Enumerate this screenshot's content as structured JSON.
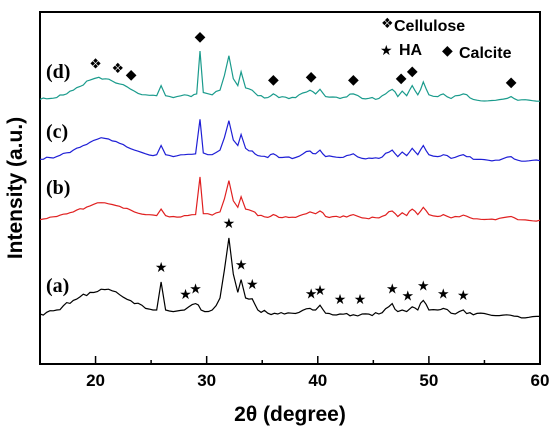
{
  "chart_data": {
    "type": "line",
    "xlabel": "2θ (degree)",
    "ylabel": "Intensity (a.u.)",
    "xlim": [
      15,
      60
    ],
    "xticks": [
      "20",
      "30",
      "40",
      "50",
      "60"
    ],
    "grid": false,
    "legend_position": "top-right",
    "legend": {
      "cellulose": {
        "symbol": "❖",
        "label": "Cellulose"
      },
      "ha": {
        "symbol": "★",
        "label": "HA"
      },
      "calcite": {
        "symbol": "◆",
        "label": "Calcite"
      }
    },
    "series": [
      {
        "name": "(d)",
        "color": "#1a9b8c",
        "points": [
          [
            15,
            0.1
          ],
          [
            16.5,
            0.14
          ],
          [
            18,
            0.3
          ],
          [
            19.5,
            0.52
          ],
          [
            20.3,
            0.58
          ],
          [
            21.5,
            0.5
          ],
          [
            22.5,
            0.42
          ],
          [
            23.5,
            0.28
          ],
          [
            24.5,
            0.2
          ],
          [
            25.5,
            0.18
          ],
          [
            25.9,
            0.4
          ],
          [
            26.3,
            0.18
          ],
          [
            27,
            0.14
          ],
          [
            28,
            0.2
          ],
          [
            28.6,
            0.16
          ],
          [
            29.1,
            0.22
          ],
          [
            29.4,
            1.15
          ],
          [
            29.7,
            0.25
          ],
          [
            30.5,
            0.2
          ],
          [
            31.2,
            0.3
          ],
          [
            31.6,
            0.62
          ],
          [
            32.0,
            1.05
          ],
          [
            32.4,
            0.55
          ],
          [
            32.8,
            0.4
          ],
          [
            33.1,
            0.7
          ],
          [
            33.5,
            0.35
          ],
          [
            34.1,
            0.3
          ],
          [
            34.6,
            0.18
          ],
          [
            35.5,
            0.14
          ],
          [
            36.0,
            0.22
          ],
          [
            36.5,
            0.14
          ],
          [
            38,
            0.14
          ],
          [
            39.3,
            0.3
          ],
          [
            39.8,
            0.22
          ],
          [
            40.2,
            0.32
          ],
          [
            40.7,
            0.16
          ],
          [
            42,
            0.12
          ],
          [
            43.2,
            0.22
          ],
          [
            44,
            0.12
          ],
          [
            45.5,
            0.12
          ],
          [
            46.7,
            0.32
          ],
          [
            47.2,
            0.16
          ],
          [
            47.6,
            0.28
          ],
          [
            48.0,
            0.18
          ],
          [
            48.5,
            0.4
          ],
          [
            49.0,
            0.2
          ],
          [
            49.5,
            0.48
          ],
          [
            50.0,
            0.2
          ],
          [
            50.8,
            0.16
          ],
          [
            51.3,
            0.22
          ],
          [
            52,
            0.12
          ],
          [
            53.1,
            0.22
          ],
          [
            54,
            0.1
          ],
          [
            56,
            0.08
          ],
          [
            57.4,
            0.16
          ],
          [
            58,
            0.08
          ],
          [
            60,
            0.06
          ]
        ]
      },
      {
        "name": "(c)",
        "color": "#1f1fd6",
        "points": [
          [
            15,
            0.08
          ],
          [
            16.5,
            0.14
          ],
          [
            18,
            0.28
          ],
          [
            19.5,
            0.45
          ],
          [
            20.5,
            0.55
          ],
          [
            21.5,
            0.48
          ],
          [
            22.5,
            0.4
          ],
          [
            23.5,
            0.28
          ],
          [
            24.5,
            0.2
          ],
          [
            25.5,
            0.18
          ],
          [
            25.9,
            0.38
          ],
          [
            26.3,
            0.18
          ],
          [
            27,
            0.14
          ],
          [
            28,
            0.18
          ],
          [
            29.0,
            0.2
          ],
          [
            29.4,
            0.95
          ],
          [
            29.7,
            0.22
          ],
          [
            30.5,
            0.18
          ],
          [
            31.2,
            0.28
          ],
          [
            31.6,
            0.55
          ],
          [
            32.0,
            0.92
          ],
          [
            32.4,
            0.5
          ],
          [
            32.8,
            0.38
          ],
          [
            33.1,
            0.62
          ],
          [
            33.5,
            0.32
          ],
          [
            34.1,
            0.26
          ],
          [
            34.6,
            0.16
          ],
          [
            35.5,
            0.12
          ],
          [
            36.0,
            0.2
          ],
          [
            36.5,
            0.12
          ],
          [
            38,
            0.12
          ],
          [
            39.3,
            0.26
          ],
          [
            39.8,
            0.2
          ],
          [
            40.2,
            0.28
          ],
          [
            40.7,
            0.14
          ],
          [
            42,
            0.12
          ],
          [
            43.2,
            0.2
          ],
          [
            44,
            0.1
          ],
          [
            45.5,
            0.1
          ],
          [
            46.7,
            0.28
          ],
          [
            47.2,
            0.14
          ],
          [
            47.6,
            0.24
          ],
          [
            48.0,
            0.16
          ],
          [
            48.5,
            0.32
          ],
          [
            49.0,
            0.18
          ],
          [
            49.5,
            0.38
          ],
          [
            50.0,
            0.18
          ],
          [
            50.8,
            0.14
          ],
          [
            51.3,
            0.18
          ],
          [
            52,
            0.1
          ],
          [
            53.1,
            0.18
          ],
          [
            54,
            0.08
          ],
          [
            56,
            0.06
          ],
          [
            57.4,
            0.14
          ],
          [
            58,
            0.06
          ],
          [
            60,
            0.05
          ]
        ]
      },
      {
        "name": "(b)",
        "color": "#e02020",
        "points": [
          [
            15,
            0.05
          ],
          [
            16.5,
            0.12
          ],
          [
            18,
            0.22
          ],
          [
            19.5,
            0.35
          ],
          [
            20.5,
            0.42
          ],
          [
            21.5,
            0.38
          ],
          [
            22.5,
            0.3
          ],
          [
            23.5,
            0.22
          ],
          [
            24.5,
            0.16
          ],
          [
            25.5,
            0.14
          ],
          [
            25.9,
            0.28
          ],
          [
            26.3,
            0.14
          ],
          [
            27,
            0.12
          ],
          [
            28,
            0.14
          ],
          [
            29.0,
            0.16
          ],
          [
            29.4,
            0.98
          ],
          [
            29.7,
            0.18
          ],
          [
            30.5,
            0.15
          ],
          [
            31.2,
            0.22
          ],
          [
            31.6,
            0.5
          ],
          [
            32.0,
            0.9
          ],
          [
            32.4,
            0.46
          ],
          [
            32.8,
            0.32
          ],
          [
            33.1,
            0.55
          ],
          [
            33.5,
            0.28
          ],
          [
            34.1,
            0.24
          ],
          [
            34.6,
            0.14
          ],
          [
            35.5,
            0.1
          ],
          [
            36.0,
            0.16
          ],
          [
            36.5,
            0.1
          ],
          [
            38,
            0.1
          ],
          [
            39.3,
            0.22
          ],
          [
            39.8,
            0.18
          ],
          [
            40.2,
            0.24
          ],
          [
            40.7,
            0.12
          ],
          [
            42,
            0.1
          ],
          [
            43.2,
            0.16
          ],
          [
            44,
            0.09
          ],
          [
            45.5,
            0.09
          ],
          [
            46.7,
            0.24
          ],
          [
            47.2,
            0.12
          ],
          [
            47.6,
            0.2
          ],
          [
            48.0,
            0.14
          ],
          [
            48.5,
            0.28
          ],
          [
            49.0,
            0.16
          ],
          [
            49.5,
            0.32
          ],
          [
            50.0,
            0.16
          ],
          [
            50.8,
            0.12
          ],
          [
            51.3,
            0.16
          ],
          [
            52,
            0.09
          ],
          [
            53.1,
            0.15
          ],
          [
            54,
            0.07
          ],
          [
            56,
            0.05
          ],
          [
            57.4,
            0.12
          ],
          [
            58,
            0.05
          ],
          [
            60,
            0.04
          ]
        ]
      },
      {
        "name": "(a)",
        "color": "#000000",
        "points": [
          [
            15,
            0.05
          ],
          [
            16.5,
            0.1
          ],
          [
            18,
            0.22
          ],
          [
            19.5,
            0.32
          ],
          [
            20.5,
            0.36
          ],
          [
            21.5,
            0.34
          ],
          [
            22.5,
            0.26
          ],
          [
            23.5,
            0.18
          ],
          [
            24.5,
            0.12
          ],
          [
            25.5,
            0.1
          ],
          [
            25.9,
            0.45
          ],
          [
            26.3,
            0.1
          ],
          [
            27,
            0.08
          ],
          [
            28.0,
            0.1
          ],
          [
            28.4,
            0.14
          ],
          [
            29.0,
            0.18
          ],
          [
            29.5,
            0.1
          ],
          [
            30.5,
            0.1
          ],
          [
            31.2,
            0.25
          ],
          [
            31.6,
            0.6
          ],
          [
            32.0,
            1.0
          ],
          [
            32.4,
            0.55
          ],
          [
            32.8,
            0.32
          ],
          [
            33.1,
            0.48
          ],
          [
            33.5,
            0.25
          ],
          [
            34.1,
            0.24
          ],
          [
            34.6,
            0.1
          ],
          [
            35.5,
            0.06
          ],
          [
            37,
            0.05
          ],
          [
            39.3,
            0.12
          ],
          [
            39.8,
            0.1
          ],
          [
            40.2,
            0.16
          ],
          [
            40.7,
            0.06
          ],
          [
            42,
            0.05
          ],
          [
            43.2,
            0.04
          ],
          [
            44,
            0.05
          ],
          [
            45.5,
            0.05
          ],
          [
            46.7,
            0.18
          ],
          [
            47.2,
            0.08
          ],
          [
            47.6,
            0.1
          ],
          [
            48.0,
            0.08
          ],
          [
            48.5,
            0.14
          ],
          [
            49.0,
            0.1
          ],
          [
            49.5,
            0.22
          ],
          [
            50.0,
            0.1
          ],
          [
            50.8,
            0.1
          ],
          [
            51.3,
            0.12
          ],
          [
            52,
            0.06
          ],
          [
            53.1,
            0.1
          ],
          [
            54,
            0.04
          ],
          [
            56,
            0.03
          ],
          [
            58,
            0.02
          ],
          [
            60,
            0.02
          ]
        ]
      }
    ],
    "markers": {
      "(d)": [
        {
          "type": "cellulose",
          "x": 20.0
        },
        {
          "type": "cellulose",
          "x": 22.0
        },
        {
          "type": "calcite",
          "x": 23.2
        },
        {
          "type": "calcite",
          "x": 29.4
        },
        {
          "type": "calcite",
          "x": 36.0
        },
        {
          "type": "calcite",
          "x": 39.4
        },
        {
          "type": "calcite",
          "x": 43.2
        },
        {
          "type": "calcite",
          "x": 47.5
        },
        {
          "type": "calcite",
          "x": 48.5
        },
        {
          "type": "calcite",
          "x": 57.4
        }
      ],
      "(a)": [
        {
          "type": "ha",
          "x": 25.9
        },
        {
          "type": "ha",
          "x": 28.1
        },
        {
          "type": "ha",
          "x": 29.0
        },
        {
          "type": "ha",
          "x": 32.0
        },
        {
          "type": "ha",
          "x": 33.1
        },
        {
          "type": "ha",
          "x": 34.1
        },
        {
          "type": "ha",
          "x": 39.4
        },
        {
          "type": "ha",
          "x": 40.2
        },
        {
          "type": "ha",
          "x": 42.0
        },
        {
          "type": "ha",
          "x": 43.8
        },
        {
          "type": "ha",
          "x": 46.7
        },
        {
          "type": "ha",
          "x": 48.1
        },
        {
          "type": "ha",
          "x": 49.5
        },
        {
          "type": "ha",
          "x": 51.3
        },
        {
          "type": "ha",
          "x": 53.1
        }
      ]
    }
  }
}
